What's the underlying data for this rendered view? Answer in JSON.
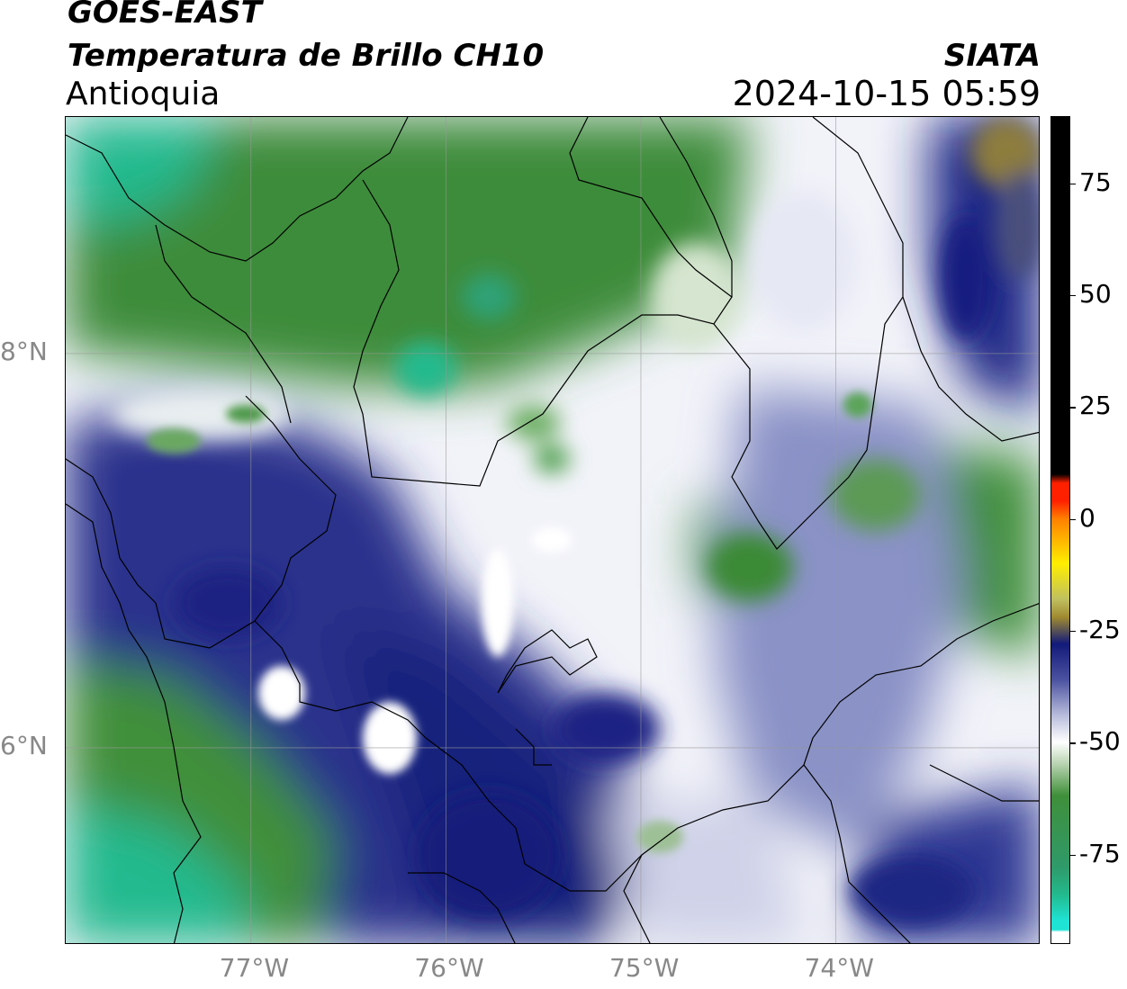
{
  "header": {
    "title_line1": "GOES-EAST",
    "title_line2": "Temperatura de Brillo CH10",
    "region": "Antioquia",
    "organization": "SIATA",
    "datetime": "2024-10-15 05:59"
  },
  "map": {
    "lon_range": [
      -77.95,
      -72.95
    ],
    "lat_range": [
      5.0,
      9.2
    ],
    "lon_ticks": [
      {
        "value": -77,
        "label": "77°W"
      },
      {
        "value": -76,
        "label": "76°W"
      },
      {
        "value": -75,
        "label": "75°W"
      },
      {
        "value": -74,
        "label": "74°W"
      }
    ],
    "lat_ticks": [
      {
        "value": 8,
        "label": "8°N"
      },
      {
        "value": 6,
        "label": "6°N"
      }
    ],
    "gridlines": true
  },
  "colorbar": {
    "range": [
      -95,
      90
    ],
    "ticks": [
      {
        "value": 75,
        "label": "75"
      },
      {
        "value": 50,
        "label": "50"
      },
      {
        "value": 25,
        "label": "25"
      },
      {
        "value": 0,
        "label": "0"
      },
      {
        "value": -25,
        "label": "-25"
      },
      {
        "value": -50,
        "label": "-50"
      },
      {
        "value": -75,
        "label": "-75"
      }
    ],
    "colors": {
      "cyan": "#1fe3d5",
      "teal": "#23b98c",
      "green": "#3f8f3a",
      "white": "#ffffff",
      "navy": "#121a7a",
      "olive": "#a08a30",
      "red": "#ff2000",
      "yellow": "#ffee00",
      "black": "#000000"
    }
  }
}
